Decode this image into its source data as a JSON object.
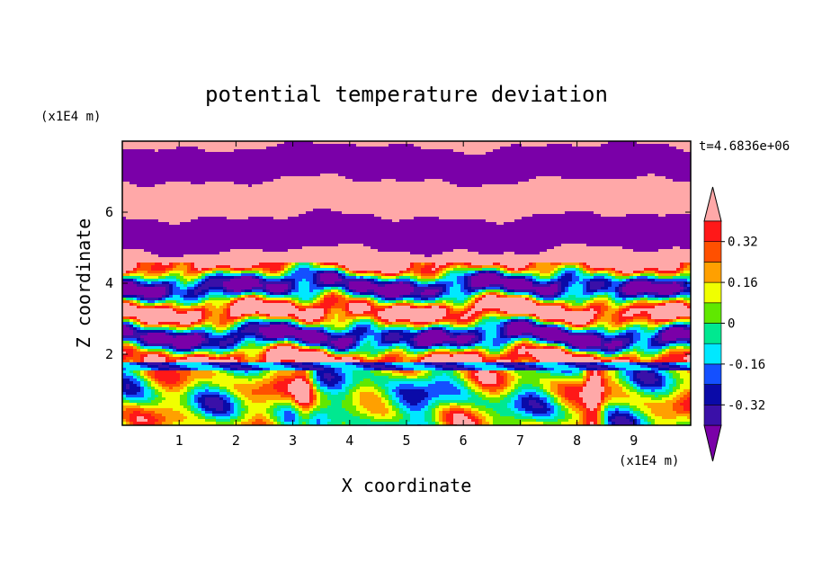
{
  "chart_data": {
    "type": "heatmap",
    "title": "potential temperature deviation",
    "xlabel": "X coordinate",
    "ylabel": "Z coordinate",
    "x_unit": "(x1E4 m)",
    "y_unit": "(x1E4 m)",
    "timestamp": "t=4.6836e+06",
    "xlim": [
      0,
      10
    ],
    "ylim": [
      0,
      8
    ],
    "x_ticks": [
      "1",
      "2",
      "3",
      "4",
      "5",
      "6",
      "7",
      "8",
      "9"
    ],
    "y_ticks": [
      "2",
      "4",
      "6"
    ],
    "colorbar": {
      "levels": [
        -0.4,
        -0.32,
        -0.24,
        -0.16,
        -0.08,
        0,
        0.08,
        0.16,
        0.24,
        0.32,
        0.4
      ],
      "labels": [
        "-0.32",
        "-0.16",
        "0",
        "0.16",
        "0.32"
      ],
      "label_values": [
        -0.32,
        -0.16,
        0,
        0.16,
        0.32
      ],
      "colors": [
        "#7a00a8",
        "#3a10a8",
        "#0a0aa8",
        "#1450ff",
        "#00e8ff",
        "#00e890",
        "#60e800",
        "#f0ff00",
        "#ffa000",
        "#ff5000",
        "#ff1818",
        "#ffa8a8"
      ]
    }
  }
}
